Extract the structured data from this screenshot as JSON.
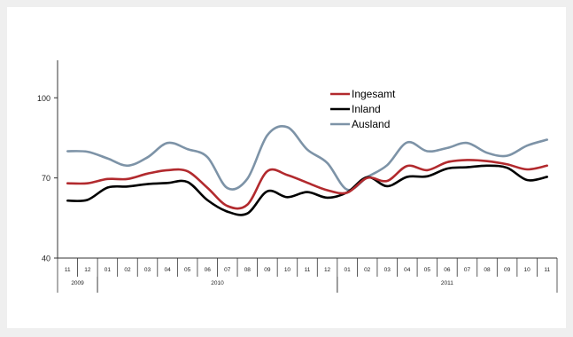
{
  "chart_data": {
    "type": "line",
    "title": "",
    "xlabel": "",
    "ylabel": "",
    "ylim": [
      40,
      122
    ],
    "yticks": [
      40,
      70,
      100
    ],
    "months": [
      "11",
      "12",
      "01",
      "02",
      "03",
      "04",
      "05",
      "06",
      "07",
      "08",
      "09",
      "10",
      "11",
      "12",
      "01",
      "02",
      "03",
      "04",
      "05",
      "06",
      "07",
      "08",
      "09",
      "10",
      "11"
    ],
    "years": [
      {
        "label": "2009",
        "start": 0,
        "count": 2
      },
      {
        "label": "2010",
        "start": 2,
        "count": 12
      },
      {
        "label": "2011",
        "start": 14,
        "count": 11
      }
    ],
    "legend_position": "top-center",
    "series": [
      {
        "name": "Ingesamt",
        "color": "#b22a2e",
        "values": [
          68,
          68,
          69.6,
          69.6,
          71.6,
          72.9,
          72.5,
          66.3,
          59.5,
          60,
          72.5,
          71.1,
          68.2,
          65.4,
          64.5,
          70,
          68.9,
          74.5,
          72.9,
          75.9,
          76.7,
          76.3,
          75.1,
          73.2,
          74.6
        ]
      },
      {
        "name": "Inland",
        "color": "#000000",
        "values": [
          61.5,
          61.8,
          66.4,
          66.8,
          67.7,
          68.1,
          68.5,
          61.7,
          57.4,
          56.7,
          65,
          62.8,
          64.7,
          62.6,
          64.6,
          70.3,
          66.9,
          70.4,
          70.6,
          73.5,
          74,
          74.6,
          73.8,
          69.2,
          70.4
        ]
      },
      {
        "name": "Ausland",
        "color": "#7d93a7",
        "values": [
          80,
          79.8,
          77.3,
          74.6,
          77.7,
          83.1,
          80.8,
          77.8,
          66.2,
          69.7,
          86,
          89,
          80.6,
          75.6,
          65.6,
          70.3,
          74.8,
          83.3,
          80,
          81.2,
          83.1,
          79.4,
          78.3,
          82.1,
          84.3
        ]
      }
    ]
  }
}
